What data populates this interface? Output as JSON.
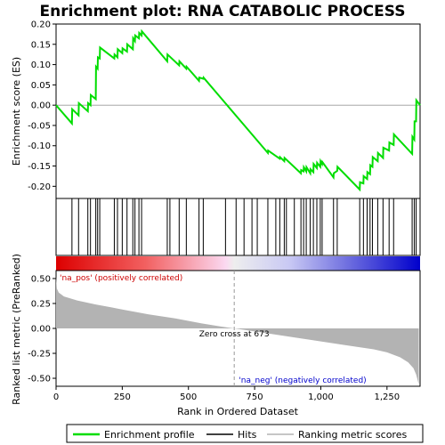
{
  "chart_data": {
    "type": "line",
    "title": "Enrichment plot: RNA CATABOLIC PROCESS",
    "top_panel": {
      "ylabel": "Enrichment score (ES)",
      "ylim": [
        -0.23,
        0.2
      ],
      "yticks": [
        "0.20",
        "0.15",
        "0.10",
        "0.05",
        "0.00",
        "-0.05",
        "-0.10",
        "-0.15",
        "-0.20"
      ],
      "ytick_values": [
        0.2,
        0.15,
        0.1,
        0.05,
        0.0,
        -0.05,
        -0.1,
        -0.15,
        -0.2
      ],
      "series": [
        {
          "name": "Enrichment profile",
          "color": "#00dd00",
          "x": [
            0,
            60,
            61,
            85,
            86,
            120,
            121,
            130,
            131,
            150,
            151,
            157,
            158,
            165,
            166,
            220,
            221,
            232,
            233,
            250,
            251,
            268,
            269,
            290,
            291,
            298,
            299,
            313,
            314,
            323,
            324,
            420,
            421,
            465,
            466,
            492,
            493,
            540,
            541,
            556,
            557,
            800,
            801,
            845,
            846,
            862,
            863,
            925,
            926,
            935,
            936,
            945,
            946,
            960,
            961,
            972,
            973,
            985,
            986,
            998,
            999,
            1005,
            1006,
            1048,
            1049,
            1062,
            1063,
            1147,
            1148,
            1161,
            1162,
            1175,
            1176,
            1186,
            1187,
            1195,
            1196,
            1215,
            1216,
            1235,
            1236,
            1258,
            1259,
            1275,
            1276,
            1345,
            1346,
            1353,
            1354,
            1360,
            1361,
            1375
          ],
          "y": [
            0.0,
            -0.045,
            -0.01,
            -0.025,
            0.005,
            -0.015,
            0.005,
            0.0,
            0.025,
            0.015,
            0.095,
            0.09,
            0.118,
            0.115,
            0.142,
            0.115,
            0.125,
            0.118,
            0.138,
            0.128,
            0.14,
            0.132,
            0.15,
            0.138,
            0.165,
            0.158,
            0.172,
            0.165,
            0.178,
            0.172,
            0.182,
            0.108,
            0.125,
            0.098,
            0.108,
            0.09,
            0.095,
            0.06,
            0.068,
            0.065,
            0.068,
            -0.118,
            -0.112,
            -0.132,
            -0.128,
            -0.138,
            -0.13,
            -0.168,
            -0.16,
            -0.163,
            -0.153,
            -0.163,
            -0.153,
            -0.168,
            -0.158,
            -0.165,
            -0.145,
            -0.155,
            -0.142,
            -0.152,
            -0.138,
            -0.145,
            -0.14,
            -0.178,
            -0.168,
            -0.162,
            -0.152,
            -0.208,
            -0.19,
            -0.193,
            -0.175,
            -0.182,
            -0.165,
            -0.17,
            -0.148,
            -0.152,
            -0.128,
            -0.138,
            -0.118,
            -0.13,
            -0.105,
            -0.112,
            -0.092,
            -0.098,
            -0.072,
            -0.12,
            -0.078,
            -0.085,
            -0.04,
            -0.04,
            0.012,
            0.0
          ]
        }
      ]
    },
    "hits": [
      60,
      85,
      120,
      130,
      150,
      157,
      165,
      220,
      232,
      250,
      268,
      290,
      298,
      313,
      323,
      420,
      430,
      465,
      492,
      540,
      556,
      640,
      680,
      710,
      740,
      760,
      800,
      830,
      845,
      862,
      870,
      900,
      925,
      935,
      945,
      960,
      972,
      985,
      998,
      1005,
      1048,
      1062,
      1147,
      1161,
      1175,
      1186,
      1195,
      1215,
      1235,
      1258,
      1275,
      1345,
      1353,
      1360
    ],
    "heatmap_bar": {
      "left_color": "#dd0000",
      "right_color": "#0000cc"
    },
    "bottom_panel": {
      "ylabel": "Ranked list metric (PreRanked)",
      "xlabel": "Rank in Ordered Dataset",
      "ylim": [
        -0.58,
        0.58
      ],
      "yticks": [
        "0.50",
        "0.25",
        "0.00",
        "-0.25",
        "-0.50"
      ],
      "ytick_values": [
        0.5,
        0.25,
        0.0,
        -0.25,
        -0.5
      ],
      "xlim": [
        0,
        1375
      ],
      "xticks": [
        "0",
        "250",
        "500",
        "750",
        "1,000",
        "1,250"
      ],
      "xtick_values": [
        0,
        250,
        500,
        750,
        1000,
        1250
      ],
      "metric_x": [
        0,
        3,
        10,
        30,
        80,
        150,
        250,
        350,
        450,
        550,
        620,
        673,
        700,
        800,
        900,
        1000,
        1100,
        1200,
        1250,
        1300,
        1330,
        1350,
        1360,
        1366,
        1370
      ],
      "metric_y": [
        0.52,
        0.4,
        0.36,
        0.32,
        0.28,
        0.24,
        0.19,
        0.14,
        0.1,
        0.05,
        0.02,
        0.0,
        -0.01,
        -0.05,
        -0.09,
        -0.13,
        -0.17,
        -0.21,
        -0.24,
        -0.29,
        -0.34,
        -0.4,
        -0.46,
        -0.52,
        -0.56
      ],
      "fill_color": "#b3b3b3",
      "zero_cross_label": "Zero cross at 673",
      "zero_cross_x": 673,
      "pos_label": "'na_pos' (positively correlated)",
      "neg_label": "'na_neg' (negatively correlated)",
      "pos_color": "#cc0000",
      "neg_color": "#0000cc"
    },
    "legend": {
      "placement": "bottom",
      "items": [
        {
          "label": "Enrichment profile",
          "color": "#00dd00"
        },
        {
          "label": "Hits",
          "color": "#000000"
        },
        {
          "label": "Ranking metric scores",
          "color": "#b3b3b3"
        }
      ]
    }
  }
}
